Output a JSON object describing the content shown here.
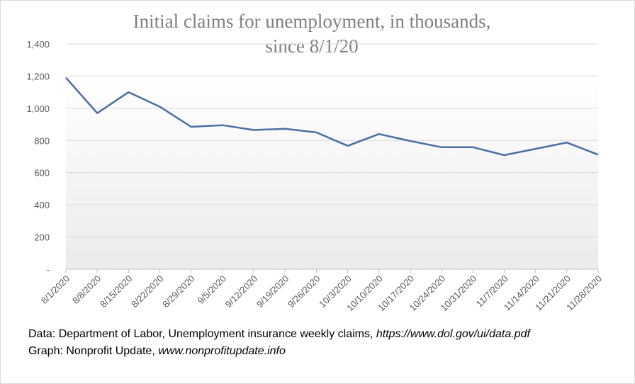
{
  "chart_data": {
    "type": "line",
    "title_line1": "Initial claims for unemployment, in thousands,",
    "title_line2": "since 8/1/20",
    "categories": [
      "8/1/2020",
      "8/8/2020",
      "8/15/2020",
      "8/22/2020",
      "8/29/2020",
      "9/5/2020",
      "9/12/2020",
      "9/19/2020",
      "9/26/2020",
      "10/3/2020",
      "10/10/2020",
      "10/17/2020",
      "10/24/2020",
      "10/31/2020",
      "11/7/2020",
      "11/14/2020",
      "11/21/2020",
      "11/28/2020"
    ],
    "values": [
      1190,
      970,
      1100,
      1010,
      885,
      895,
      865,
      873,
      850,
      767,
      840,
      797,
      758,
      758,
      709,
      748,
      787,
      712
    ],
    "ylim": [
      0,
      1400
    ],
    "yticks": [
      0,
      200,
      400,
      600,
      800,
      1000,
      1200,
      1400
    ],
    "ytick_labels": [
      "-",
      "200",
      "400",
      "600",
      "800",
      "1,000",
      "1,200",
      "1,400"
    ],
    "grid": true,
    "line_color": "#4a6fa5",
    "grid_color": "#d9d9d9",
    "plot_gradient": [
      "#ffffff",
      "#ebebeb"
    ]
  },
  "footer": {
    "source_prefix": "Data: Department of Labor, Unemployment insurance weekly claims, ",
    "source_url": "https://www.dol.gov/ui/data.pdf",
    "graph_prefix": "Graph:  Nonprofit Update, ",
    "graph_url": "www.nonprofitupdate.info"
  }
}
